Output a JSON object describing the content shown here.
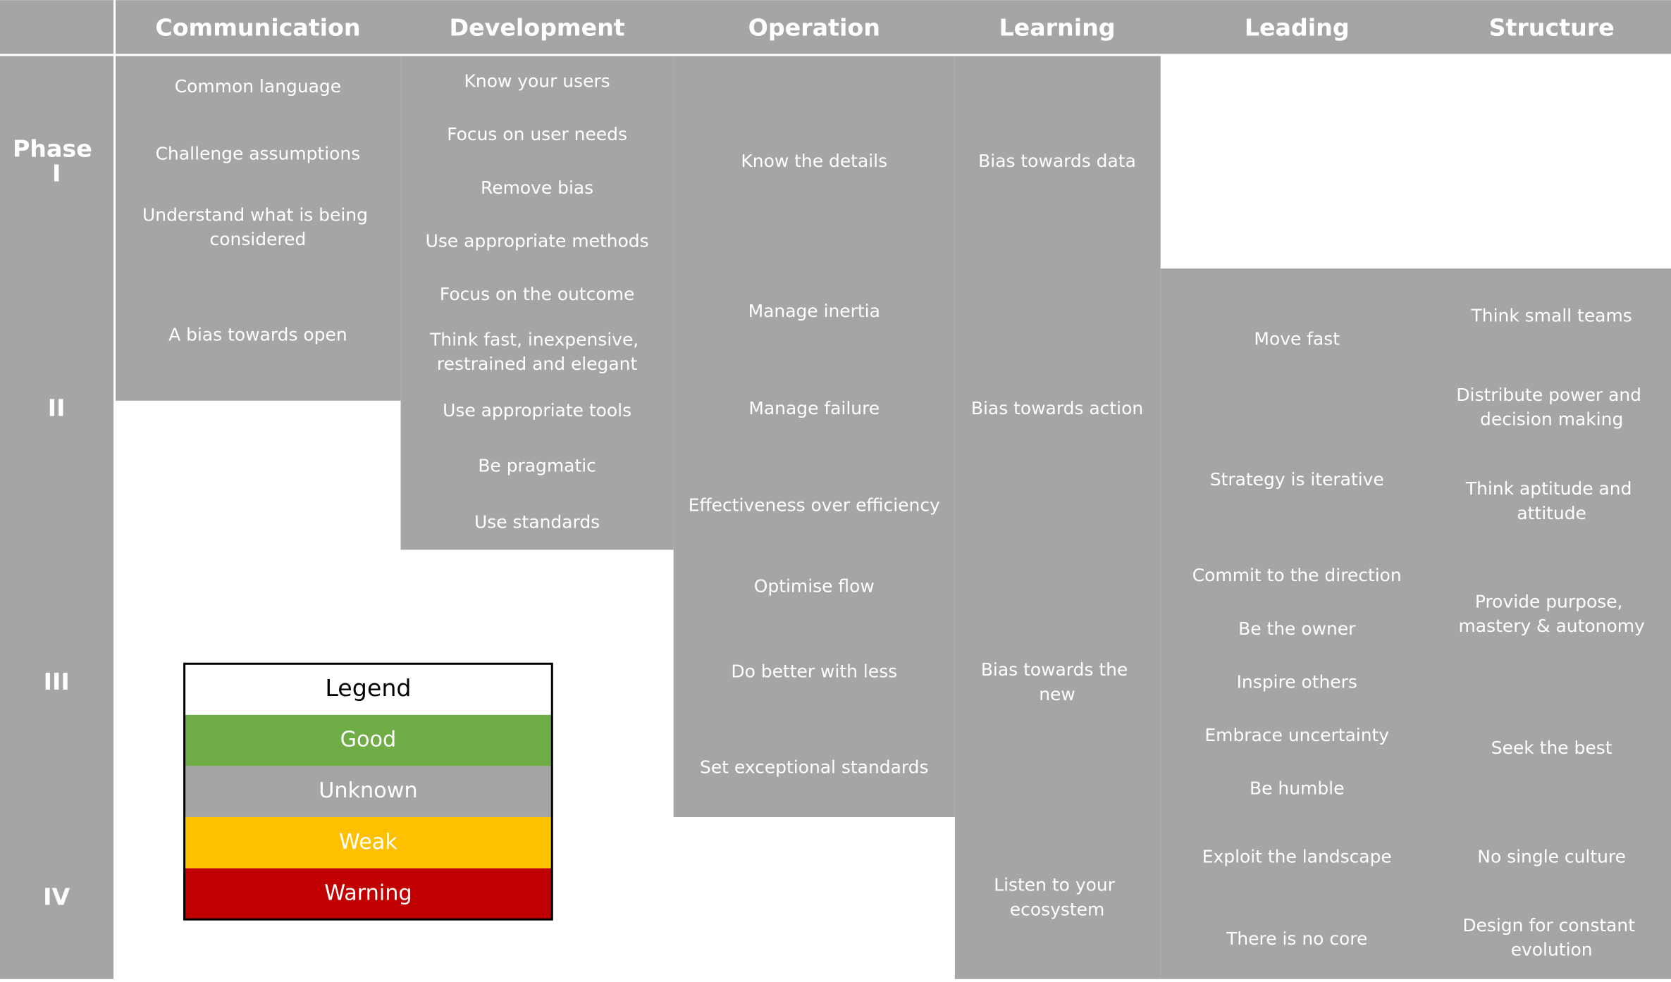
{
  "headers": [
    "Communication",
    "Development",
    "Operation",
    "Learning",
    "Leading",
    "Structure"
  ],
  "phases": [
    "Phase I",
    "II",
    "III",
    "IV"
  ],
  "columns": [
    {
      "items": [
        "Common language",
        "Challenge assumptions",
        "Understand what is being considered",
        "A bias towards open"
      ]
    },
    {
      "items": [
        "Know your users",
        "Focus on user needs",
        "Remove bias",
        "Use appropriate methods",
        "Focus on the outcome",
        "Think fast, inexpensive, restrained and elegant",
        "Use appropriate tools",
        "Be pragmatic",
        "Use standards"
      ]
    },
    {
      "items": [
        "Know the details",
        "Manage inertia",
        "Manage failure",
        "Effectiveness over efficiency",
        "Optimise flow",
        "Do better with less",
        "Set exceptional standards"
      ]
    },
    {
      "items": [
        "Bias towards data",
        "Bias towards action",
        "Bias towards the new",
        "Listen to your ecosystem"
      ]
    },
    {
      "items": [
        "Move fast",
        "Strategy is iterative",
        "Commit to the direction",
        "Be the owner",
        "Inspire others",
        "Embrace uncertainty",
        "Be humble",
        "Exploit the landscape",
        "There is no core"
      ]
    },
    {
      "items": [
        "Think small teams",
        "Distribute power and decision making",
        "Think aptitude and attitude",
        "Provide purpose, mastery & autonomy",
        "Seek the best",
        "No single culture",
        "Design for constant evolution"
      ]
    }
  ],
  "legend": {
    "title": "Legend",
    "entries": [
      {
        "label": "Good",
        "color": "#70ad47"
      },
      {
        "label": "Unknown",
        "color": "#a5a5a5"
      },
      {
        "label": "Weak",
        "color": "#ffc000"
      },
      {
        "label": "Warning",
        "color": "#c00000"
      }
    ]
  }
}
